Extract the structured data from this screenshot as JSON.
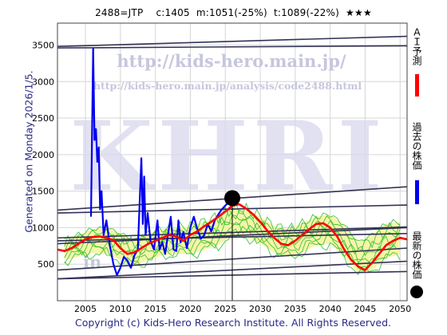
{
  "header": {
    "code": "2488=JTP",
    "current": "c:1405",
    "m": "m:1051(-25%)",
    "t": "t:1089(-22%)",
    "stars": "★★★"
  },
  "side_text": "Generated on Monday 2026/1/5.",
  "footer": "Copyright (c) Kids-Hero Research Institute. All Rights Reserved.",
  "watermark": {
    "url_big": "http://kids-hero.main.jp/",
    "url_small": "http://kids-hero.main.jp/analysis/code2488.html",
    "letters": "KHRI",
    "bottom_url": "in"
  },
  "legend": {
    "ai": "ＡＩ予測",
    "past": "過去の株価",
    "latest": "最新の株価"
  },
  "colors": {
    "ai": "#ff0000",
    "past": "#0000ee",
    "green": "#22bb22",
    "band": "#f4f4a0",
    "trend": "#333355",
    "dot": "#000000"
  },
  "chart_data": {
    "type": "line",
    "xlim": [
      2001,
      2051
    ],
    "ylim": [
      0,
      3800
    ],
    "xticks": [
      2005,
      2010,
      2015,
      2020,
      2025,
      2030,
      2035,
      2040,
      2045,
      2050
    ],
    "yticks": [
      500,
      1000,
      1500,
      2000,
      2500,
      3000,
      3500
    ],
    "grid": true,
    "latest_point": {
      "x": 2026.0,
      "y": 1405
    },
    "series": [
      {
        "role": "past",
        "x": [
          2001,
          2002,
          2003,
          2004,
          2005,
          2005.8,
          2006.1,
          2006.3,
          2006.5,
          2006.7,
          2006.9,
          2007.1,
          2007.3,
          2007.6,
          2008,
          2008.5,
          2009,
          2009.5,
          2010,
          2010.5,
          2011,
          2011.5,
          2012,
          2012.5,
          2013,
          2013.2,
          2013.4,
          2013.6,
          2013.9,
          2014.3,
          2014.8,
          2015.3,
          2015.6,
          2016,
          2016.4,
          2016.8,
          2017.2,
          2017.6,
          2018,
          2018.3,
          2018.6,
          2019,
          2019.5,
          2020,
          2020.5,
          2021,
          2021.5,
          2022,
          2022.5,
          2023,
          2023.5,
          2024,
          2024.5,
          2025,
          2025.5,
          2026.0
        ],
        "y": [
          null,
          null,
          null,
          null,
          null,
          1150,
          3450,
          2200,
          2350,
          1900,
          2100,
          1250,
          1500,
          900,
          1100,
          750,
          500,
          350,
          450,
          600,
          550,
          450,
          620,
          700,
          1950,
          1050,
          1700,
          900,
          1200,
          820,
          700,
          1100,
          700,
          800,
          640,
          900,
          1150,
          700,
          680,
          1100,
          800,
          940,
          720,
          1000,
          1150,
          980,
          850,
          900,
          1050,
          950,
          1100,
          1180,
          1250,
          1300,
          1350,
          1405
        ]
      },
      {
        "role": "ai",
        "x": [
          2001,
          2002,
          2003,
          2004,
          2005,
          2006,
          2007,
          2008,
          2009,
          2010,
          2011,
          2012,
          2013,
          2014,
          2015,
          2016,
          2017,
          2018,
          2019,
          2020,
          2021,
          2022,
          2023,
          2024,
          2025,
          2026,
          2027,
          2028,
          2029,
          2030,
          2031,
          2032,
          2033,
          2034,
          2035,
          2036,
          2037,
          2038,
          2039,
          2040,
          2041,
          2042,
          2043,
          2044,
          2045,
          2046,
          2047,
          2048,
          2049,
          2050,
          2051
        ],
        "y": [
          700,
          680,
          720,
          780,
          840,
          870,
          880,
          860,
          830,
          720,
          640,
          660,
          720,
          780,
          820,
          860,
          900,
          880,
          820,
          900,
          950,
          1020,
          1080,
          1150,
          1220,
          1300,
          1320,
          1260,
          1180,
          1080,
          960,
          860,
          780,
          760,
          820,
          900,
          980,
          1050,
          1060,
          1000,
          880,
          700,
          560,
          470,
          420,
          520,
          640,
          760,
          820,
          860,
          840
        ]
      }
    ],
    "band": {
      "x": [
        2002,
        2004,
        2006,
        2008,
        2010,
        2012,
        2014,
        2016,
        2018,
        2020,
        2022,
        2024,
        2026,
        2028,
        2030,
        2032,
        2034,
        2036,
        2038,
        2040,
        2042,
        2044,
        2046,
        2048,
        2050
      ],
      "low": [
        560,
        600,
        650,
        640,
        560,
        480,
        560,
        620,
        640,
        640,
        700,
        760,
        900,
        880,
        780,
        660,
        600,
        660,
        760,
        780,
        600,
        380,
        420,
        580,
        640
      ],
      "high": [
        820,
        900,
        980,
        1000,
        920,
        820,
        920,
        980,
        1000,
        1020,
        1080,
        1150,
        1250,
        1240,
        1150,
        1020,
        980,
        1060,
        1150,
        1180,
        1040,
        800,
        900,
        1050,
        1080
      ]
    },
    "trendlines": [
      {
        "x": [
          2001,
          2051
        ],
        "y": [
          3480,
          3620
        ]
      },
      {
        "x": [
          2001,
          2051
        ],
        "y": [
          3460,
          3490
        ]
      },
      {
        "x": [
          2001,
          2051
        ],
        "y": [
          1240,
          1560
        ]
      },
      {
        "x": [
          2001,
          2051
        ],
        "y": [
          1200,
          1310
        ]
      },
      {
        "x": [
          2001,
          2051
        ],
        "y": [
          860,
          1010
        ]
      },
      {
        "x": [
          2001,
          2051
        ],
        "y": [
          820,
          920
        ]
      },
      {
        "x": [
          2001,
          2051
        ],
        "y": [
          780,
          1000
        ]
      },
      {
        "x": [
          2001,
          2051
        ],
        "y": [
          420,
          720
        ]
      },
      {
        "x": [
          2001,
          2051
        ],
        "y": [
          300,
          540
        ]
      },
      {
        "x": [
          2001,
          2051
        ],
        "y": [
          300,
          400
        ]
      }
    ]
  }
}
